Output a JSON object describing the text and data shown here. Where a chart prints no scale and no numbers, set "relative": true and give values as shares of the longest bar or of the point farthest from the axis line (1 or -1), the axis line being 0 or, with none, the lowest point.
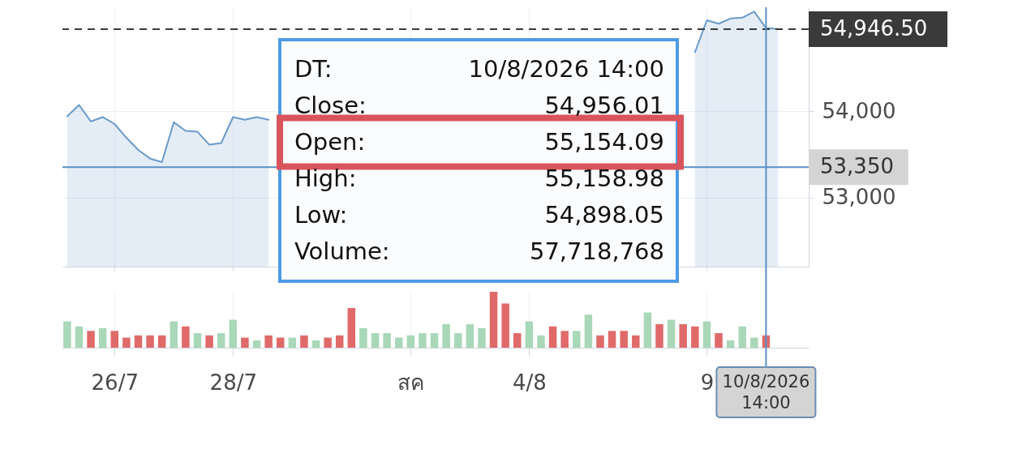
{
  "chart_data": [
    {
      "type": "area",
      "categories": [
        null,
        null,
        null,
        null,
        "26/7",
        null,
        null,
        null,
        null,
        null,
        null,
        null,
        null,
        null,
        "28/7",
        null,
        null,
        null,
        null,
        null,
        null,
        null,
        null,
        null,
        null,
        null,
        null,
        null,
        null,
        "สค",
        null,
        null,
        null,
        null,
        null,
        null,
        null,
        null,
        null,
        "4/8",
        null,
        null,
        null,
        null,
        null,
        null,
        null,
        null,
        null,
        null,
        null,
        null,
        null,
        null,
        "9",
        null,
        null,
        null,
        null,
        "10/8/2026 14:00",
        null
      ],
      "series": [
        {
          "color": "#6a9bcb",
          "values": [
            53940,
            54070,
            53880,
            53930,
            53850,
            53690,
            53550,
            53450,
            53410,
            53870,
            53770,
            53760,
            53610,
            53630,
            53930,
            53900,
            53930,
            53900,
            null,
            null,
            null,
            null,
            null,
            null,
            null,
            null,
            null,
            null,
            null,
            null,
            null,
            null,
            null,
            null,
            null,
            null,
            null,
            null,
            null,
            null,
            null,
            null,
            null,
            null,
            null,
            null,
            null,
            null,
            null,
            null,
            null,
            null,
            null,
            54680,
            55050,
            55010,
            55070,
            55080,
            55150,
            54960,
            54950
          ]
        }
      ],
      "ylim": [
        52200,
        55200
      ],
      "yticks": [
        {
          "value": 53000,
          "label": "53,000"
        },
        {
          "value": 54000,
          "label": "54,000"
        }
      ],
      "grid": true,
      "tick_labels": "y",
      "ref_lines": [
        {
          "axis": "y",
          "value": 54946.5,
          "label": "54,946.50",
          "color": "#3a3a3a",
          "line_style": "dashed"
        },
        {
          "axis": "y",
          "value": 53350,
          "label": "53,350",
          "color": "#5b8fc6"
        },
        {
          "axis": "x",
          "value": "10/8/2026 14:00",
          "color": "#5b8fc6"
        }
      ],
      "annotations": [
        "DT:",
        "10/8/2026 14:00",
        "Close:",
        "54,956.01",
        "Open:",
        "55,154.09",
        "High:",
        "55,158.98",
        "Low:",
        "54,898.05",
        "Volume:",
        "57,718,768"
      ]
    },
    {
      "type": "bar",
      "relative": true,
      "categories": [
        null,
        null,
        null,
        null,
        "26/7",
        null,
        null,
        null,
        null,
        null,
        null,
        null,
        null,
        null,
        "28/7",
        null,
        null,
        null,
        null,
        null,
        null,
        null,
        null,
        null,
        null,
        null,
        null,
        null,
        null,
        "สค",
        null,
        null,
        null,
        null,
        null,
        null,
        null,
        null,
        null,
        "4/8",
        null,
        null,
        null,
        null,
        null,
        null,
        null,
        null,
        null,
        null,
        null,
        null,
        null,
        null,
        "9",
        null,
        null,
        null,
        null,
        "10/8/2026 14:00",
        null
      ],
      "values": [
        0.47,
        0.38,
        0.3,
        0.35,
        0.3,
        0.18,
        0.22,
        0.22,
        0.22,
        0.47,
        0.38,
        0.26,
        0.22,
        0.26,
        0.5,
        0.18,
        0.13,
        0.22,
        0.18,
        0.18,
        0.22,
        0.13,
        0.18,
        0.22,
        0.71,
        0.35,
        0.26,
        0.26,
        0.18,
        0.22,
        0.26,
        0.26,
        0.42,
        0.26,
        0.42,
        0.35,
        1,
        0.79,
        0.26,
        0.47,
        0.22,
        0.38,
        0.3,
        0.3,
        0.59,
        0.22,
        0.3,
        0.3,
        0.22,
        0.63,
        0.42,
        0.5,
        0.42,
        0.38,
        0.47,
        0.26,
        0.13,
        0.38,
        0.18,
        0.22,
        null
      ],
      "colors": [
        "#a9d8b8",
        "#a9d8b8",
        "#e06a6a",
        "#a9d8b8",
        "#e06a6a",
        "#e06a6a",
        "#e06a6a",
        "#e06a6a",
        "#e06a6a",
        "#a9d8b8",
        "#e06a6a",
        "#a9d8b8",
        "#e06a6a",
        "#a9d8b8",
        "#a9d8b8",
        "#e06a6a",
        "#a9d8b8",
        "#e06a6a",
        "#e06a6a",
        "#a9d8b8",
        "#e06a6a",
        "#a9d8b8",
        "#e06a6a",
        "#e06a6a",
        "#e06a6a",
        "#a9d8b8",
        "#a9d8b8",
        "#a9d8b8",
        "#a9d8b8",
        "#a9d8b8",
        "#a9d8b8",
        "#a9d8b8",
        "#a9d8b8",
        "#a9d8b8",
        "#a9d8b8",
        "#a9d8b8",
        "#e06a6a",
        "#e06a6a",
        "#e06a6a",
        "#a9d8b8",
        "#a9d8b8",
        "#e06a6a",
        "#e06a6a",
        "#a9d8b8",
        "#a9d8b8",
        "#e06a6a",
        "#e06a6a",
        "#e06a6a",
        "#e06a6a",
        "#a9d8b8",
        "#e06a6a",
        "#a9d8b8",
        "#e06a6a",
        "#e06a6a",
        "#a9d8b8",
        "#e06a6a",
        "#a9d8b8",
        "#a9d8b8",
        "#a9d8b8",
        "#e06a6a",
        null
      ],
      "grid": "x",
      "tick_labels": "x",
      "ref_lines": [
        {
          "axis": "x",
          "value": "10/8/2026 14:00",
          "color": "#5b8fc6"
        }
      ]
    }
  ]
}
